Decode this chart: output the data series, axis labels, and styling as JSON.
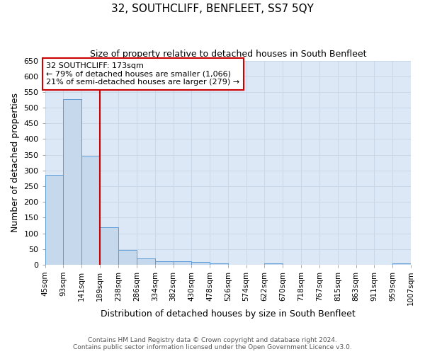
{
  "title": "32, SOUTHCLIFF, BENFLEET, SS7 5QY",
  "subtitle": "Size of property relative to detached houses in South Benfleet",
  "xlabel": "Distribution of detached houses by size in South Benfleet",
  "ylabel": "Number of detached properties",
  "footer_line1": "Contains HM Land Registry data © Crown copyright and database right 2024.",
  "footer_line2": "Contains public sector information licensed under the Open Government Licence v3.0.",
  "bins": [
    45,
    93,
    141,
    189,
    238,
    286,
    334,
    382,
    430,
    478,
    526,
    574,
    622,
    670,
    718,
    767,
    815,
    863,
    911,
    959,
    1007
  ],
  "bin_labels": [
    "45sqm",
    "93sqm",
    "141sqm",
    "189sqm",
    "238sqm",
    "286sqm",
    "334sqm",
    "382sqm",
    "430sqm",
    "478sqm",
    "526sqm",
    "574sqm",
    "622sqm",
    "670sqm",
    "718sqm",
    "767sqm",
    "815sqm",
    "863sqm",
    "911sqm",
    "959sqm",
    "1007sqm"
  ],
  "values": [
    285,
    527,
    345,
    120,
    48,
    19,
    10,
    10,
    8,
    4,
    0,
    0,
    5,
    0,
    0,
    0,
    0,
    0,
    0,
    5
  ],
  "bar_color": "#c5d8ec",
  "bar_edgecolor": "#5b9bd5",
  "grid_color": "#c8d8e8",
  "bg_color": "#dce8f5",
  "vline_x": 189,
  "vline_color": "#cc0000",
  "annotation_text": "32 SOUTHCLIFF: 173sqm\n← 79% of detached houses are smaller (1,066)\n21% of semi-detached houses are larger (279) →",
  "annotation_box_color": "#cc0000",
  "ylim": [
    0,
    650
  ],
  "yticks": [
    0,
    50,
    100,
    150,
    200,
    250,
    300,
    350,
    400,
    450,
    500,
    550,
    600,
    650
  ],
  "figsize": [
    6.0,
    5.0
  ],
  "dpi": 100
}
